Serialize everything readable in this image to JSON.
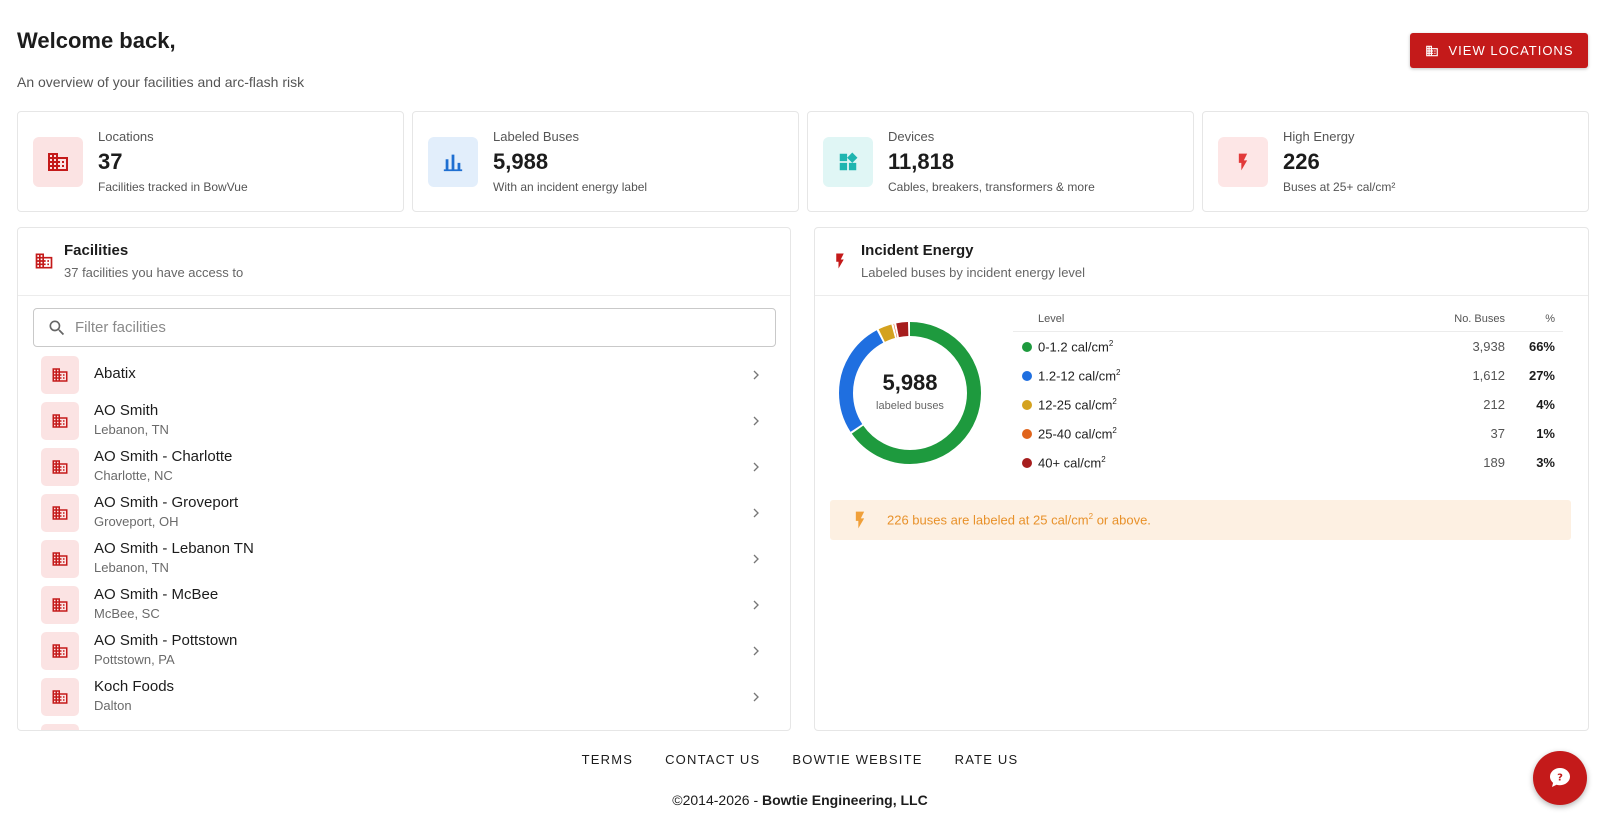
{
  "header": {
    "welcome": "Welcome back,",
    "subtitle": "An overview of your facilities and arc-flash risk",
    "view_locations_label": "VIEW LOCATIONS"
  },
  "stats": [
    {
      "label": "Locations",
      "value": "37",
      "desc": "Facilities tracked in BowVue",
      "icon": "building-icon",
      "color": "#c41a1a",
      "bg": "#fbe3e3"
    },
    {
      "label": "Labeled Buses",
      "value": "5,988",
      "desc": "With an incident energy label",
      "icon": "bar-chart-icon",
      "color": "#1f6fd1",
      "bg": "#e2eefb"
    },
    {
      "label": "Devices",
      "value": "11,818",
      "desc": "Cables, breakers, transformers & more",
      "icon": "widgets-icon",
      "color": "#1fb5b0",
      "bg": "#e0f6f5"
    },
    {
      "label": "High Energy",
      "value": "226",
      "desc": "Buses at 25+ cal/cm²",
      "icon": "bolt-icon",
      "color": "#e23a3a",
      "bg": "#fde6e6"
    }
  ],
  "facilities": {
    "title": "Facilities",
    "subtitle": "37 facilities you have access to",
    "filter_placeholder": "Filter facilities",
    "items": [
      {
        "name": "Abatix",
        "location": ""
      },
      {
        "name": "AO Smith",
        "location": "Lebanon, TN"
      },
      {
        "name": "AO Smith - Charlotte",
        "location": "Charlotte, NC"
      },
      {
        "name": "AO Smith - Groveport",
        "location": "Groveport, OH"
      },
      {
        "name": "AO Smith - Lebanon TN",
        "location": "Lebanon, TN"
      },
      {
        "name": "AO Smith - McBee",
        "location": "McBee, SC"
      },
      {
        "name": "AO Smith - Pottstown",
        "location": "Pottstown, PA"
      },
      {
        "name": "Koch Foods",
        "location": "Dalton"
      }
    ]
  },
  "incident_energy": {
    "title": "Incident Energy",
    "subtitle": "Labeled buses by incident energy level",
    "total": "5,988",
    "total_label": "labeled buses",
    "col_level": "Level",
    "col_buses": "No. Buses",
    "col_pct": "%",
    "levels": [
      {
        "level": "0-1.2 cal/cm",
        "buses": 3938,
        "buses_text": "3,938",
        "pct": "66%",
        "color": "#1e9a3e"
      },
      {
        "level": "1.2-12 cal/cm",
        "buses": 1612,
        "buses_text": "1,612",
        "pct": "27%",
        "color": "#1f6fe0"
      },
      {
        "level": "12-25 cal/cm",
        "buses": 212,
        "buses_text": "212",
        "pct": "4%",
        "color": "#d4a21f"
      },
      {
        "level": "25-40 cal/cm",
        "buses": 37,
        "buses_text": "37",
        "pct": "1%",
        "color": "#e0641c"
      },
      {
        "level": "40+ cal/cm",
        "buses": 189,
        "buses_text": "189",
        "pct": "3%",
        "color": "#a61d1d"
      }
    ],
    "alert_text": "226 buses are labeled at 25 cal/cm",
    "alert_suffix": " or above."
  },
  "footer": {
    "links": [
      "TERMS",
      "CONTACT US",
      "BOWTIE WEBSITE",
      "RATE US"
    ],
    "copyright_prefix": "©2014-2026 - ",
    "copyright_company": "Bowtie Engineering, LLC"
  }
}
